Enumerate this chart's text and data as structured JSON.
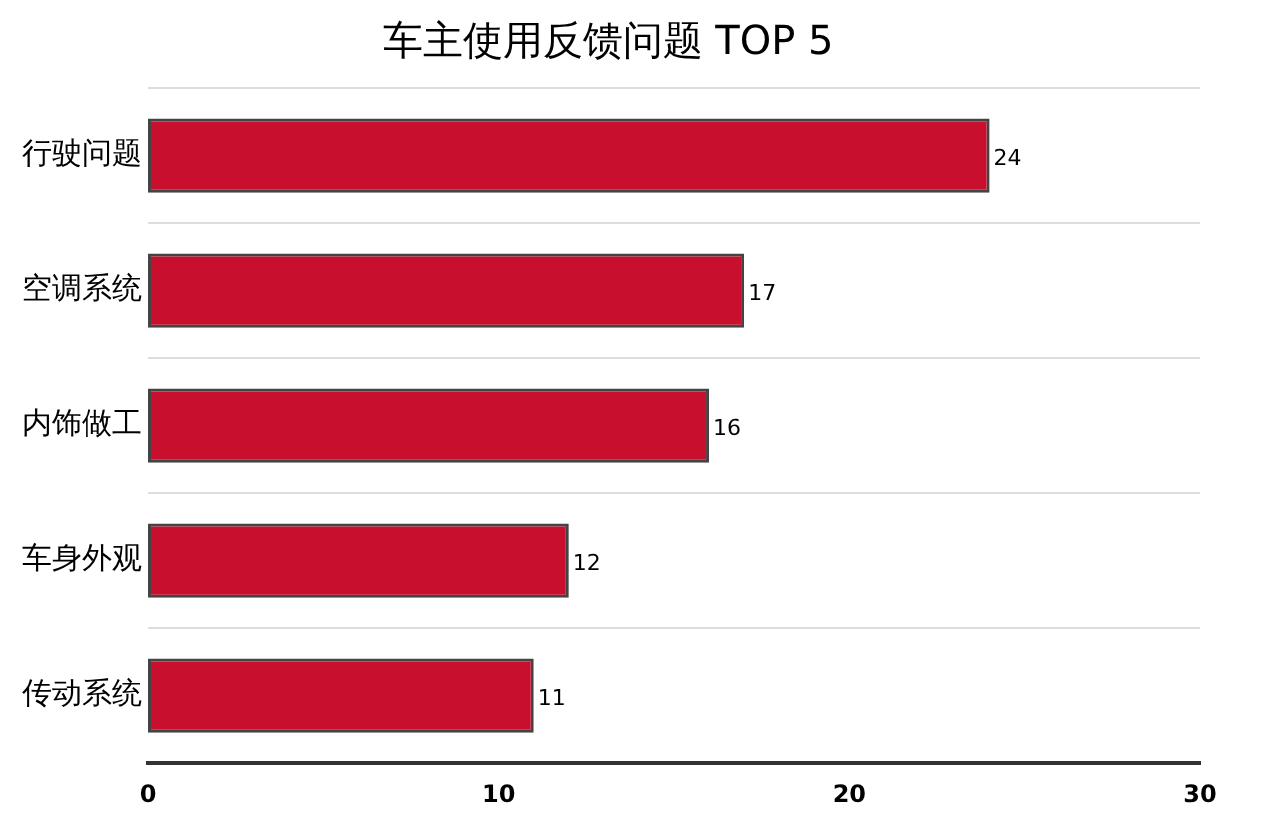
{
  "chart_data": {
    "type": "bar",
    "orientation": "horizontal",
    "title": "车主使用反馈问题 TOP 5",
    "categories": [
      "行驶问题",
      "空调系统",
      "内饰做工",
      "车身外观",
      "传动系统"
    ],
    "values": [
      24,
      17,
      16,
      12,
      11
    ],
    "color": "#c8102e",
    "xlim": [
      0,
      30
    ],
    "xticks": [
      0,
      10,
      20,
      30
    ],
    "grid": "y",
    "data_labels": true,
    "legend": false
  }
}
